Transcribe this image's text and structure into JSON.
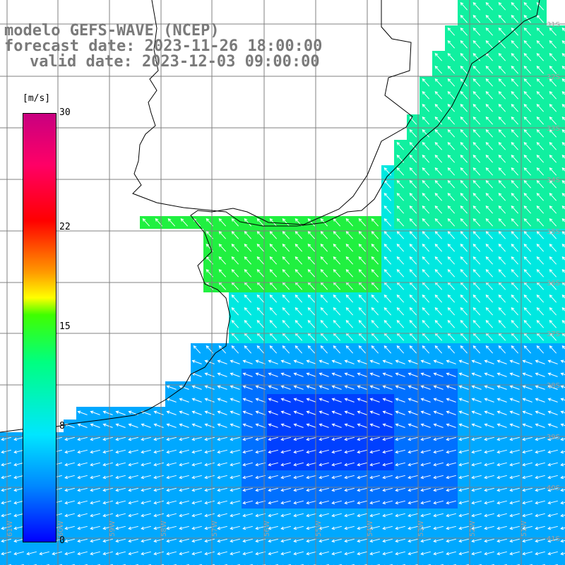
{
  "title": {
    "line1": "modelo GEFS-WAVE (NCEP)",
    "line2": "forecast date: 2023-11-26 18:00:00",
    "line3": "valid date: 2023-12-03 09:00:00"
  },
  "colorbar": {
    "unit": "[m/s]",
    "ticks": [
      {
        "label": "30",
        "value": 30
      },
      {
        "label": "22",
        "value": 22
      },
      {
        "label": "15",
        "value": 15
      },
      {
        "label": "8",
        "value": 8
      },
      {
        "label": "0",
        "value": 0
      }
    ]
  },
  "lat_labels": [
    "31S",
    "32S",
    "33S",
    "34S",
    "35S",
    "36S",
    "37S",
    "38S",
    "39S",
    "40S",
    "41S"
  ],
  "lon_labels": [
    "61W",
    "60W",
    "59W",
    "58W",
    "57W",
    "56W",
    "55W",
    "54W",
    "53W",
    "52W",
    "51W"
  ],
  "colors": {
    "title": "#7a7a7a",
    "coast": "#000000",
    "grid": "#808080",
    "arrows": "#ffffff"
  }
}
